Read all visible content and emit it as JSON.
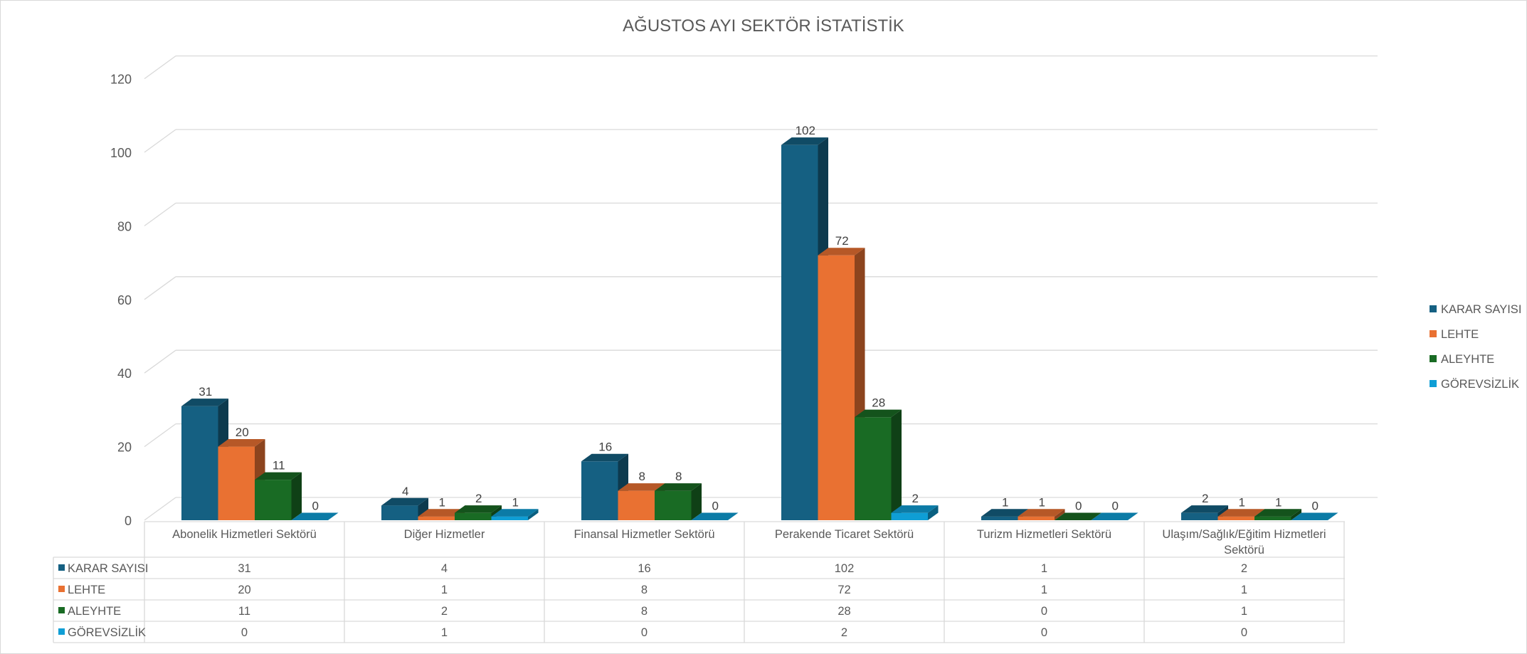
{
  "chart_data": {
    "type": "bar",
    "title": "AĞUSTOS AYI SEKTÖR İSTATİSTİK",
    "categories": [
      "Abonelik Hizmetleri Sektörü",
      "Diğer Hizmetler",
      "Finansal Hizmetler Sektörü",
      "Perakende Ticaret Sektörü",
      "Turizm Hizmetleri Sektörü",
      "Ulaşım/Sağlık/Eğitim Hizmetleri Sektörü"
    ],
    "series": [
      {
        "name": "KARAR SAYISI",
        "values": [
          31,
          4,
          16,
          102,
          1,
          2
        ],
        "color": "#156082"
      },
      {
        "name": "LEHTE",
        "values": [
          20,
          1,
          8,
          72,
          1,
          1
        ],
        "color": "#E97132"
      },
      {
        "name": "ALEYHTE",
        "values": [
          11,
          2,
          8,
          28,
          0,
          1
        ],
        "color": "#196B24"
      },
      {
        "name": "GÖREVSİZLİK",
        "values": [
          0,
          1,
          0,
          2,
          0,
          0
        ],
        "color": "#0F9ED5"
      }
    ],
    "ylim": [
      0,
      120
    ],
    "yticks": [
      0,
      20,
      40,
      60,
      80,
      100,
      120
    ],
    "xlabel": "",
    "ylabel": "",
    "grid": true,
    "three_d": true,
    "data_labels": true,
    "data_table": true,
    "legend_position": "right"
  }
}
